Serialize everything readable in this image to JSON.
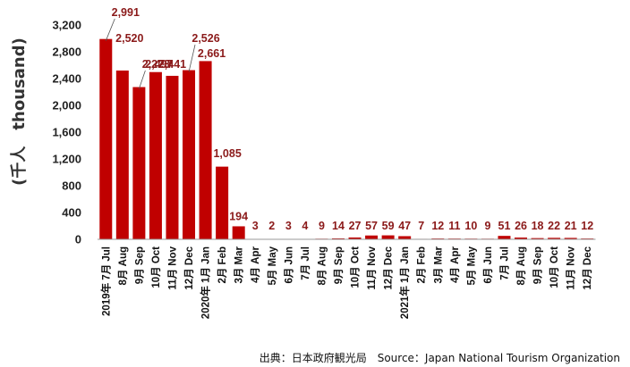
{
  "chart_data": {
    "type": "bar",
    "ylabel": "(千人　thousand)",
    "ylim": [
      0,
      3200
    ],
    "ytick_step": 400,
    "ytick_labels": [
      "0",
      "400",
      "800",
      "1,200",
      "1,600",
      "2,000",
      "2,400",
      "2,800",
      "3,200"
    ],
    "bar_color": "#C00000",
    "grid": false,
    "categories": [
      "2019年 7月 Jul",
      "8月 Aug",
      "9月 Sep",
      "10月 Oct",
      "11月 Nov",
      "12月 Dec",
      "2020年 1月 Jan",
      "2月 Feb",
      "3月 Mar",
      "4月 Apr",
      "5月 May",
      "6月 Jun",
      "7月 Jul",
      "8月 Aug",
      "9月 Sep",
      "10月 Oct",
      "11月 Nov",
      "12月 Dec",
      "2021年 1月 Jan",
      "2月 Feb",
      "3月 Mar",
      "4月 Apr",
      "5月 May",
      "6月 Jun",
      "7月 Jul",
      "8月 Aug",
      "9月 Sep",
      "10月 Oct",
      "11月 Nov",
      "12月 Dec"
    ],
    "values": [
      2991,
      2520,
      2273,
      2497,
      2441,
      2526,
      2661,
      1085,
      194,
      3,
      2,
      3,
      4,
      9,
      14,
      27,
      57,
      59,
      47,
      7,
      12,
      11,
      10,
      9,
      51,
      26,
      18,
      22,
      21,
      12
    ],
    "data_labels": [
      "2,991",
      "2,520",
      "2,273",
      "2,497",
      "2,441",
      "2,526",
      "2,661",
      "1,085",
      "194",
      "3",
      "2",
      "3",
      "4",
      "9",
      "14",
      "27",
      "57",
      "59",
      "47",
      "7",
      "12",
      "11",
      "10",
      "9",
      "51",
      "26",
      "18",
      "22",
      "21",
      "12"
    ]
  },
  "source_note": "出典：日本政府観光局　Source：Japan National Tourism Organization"
}
